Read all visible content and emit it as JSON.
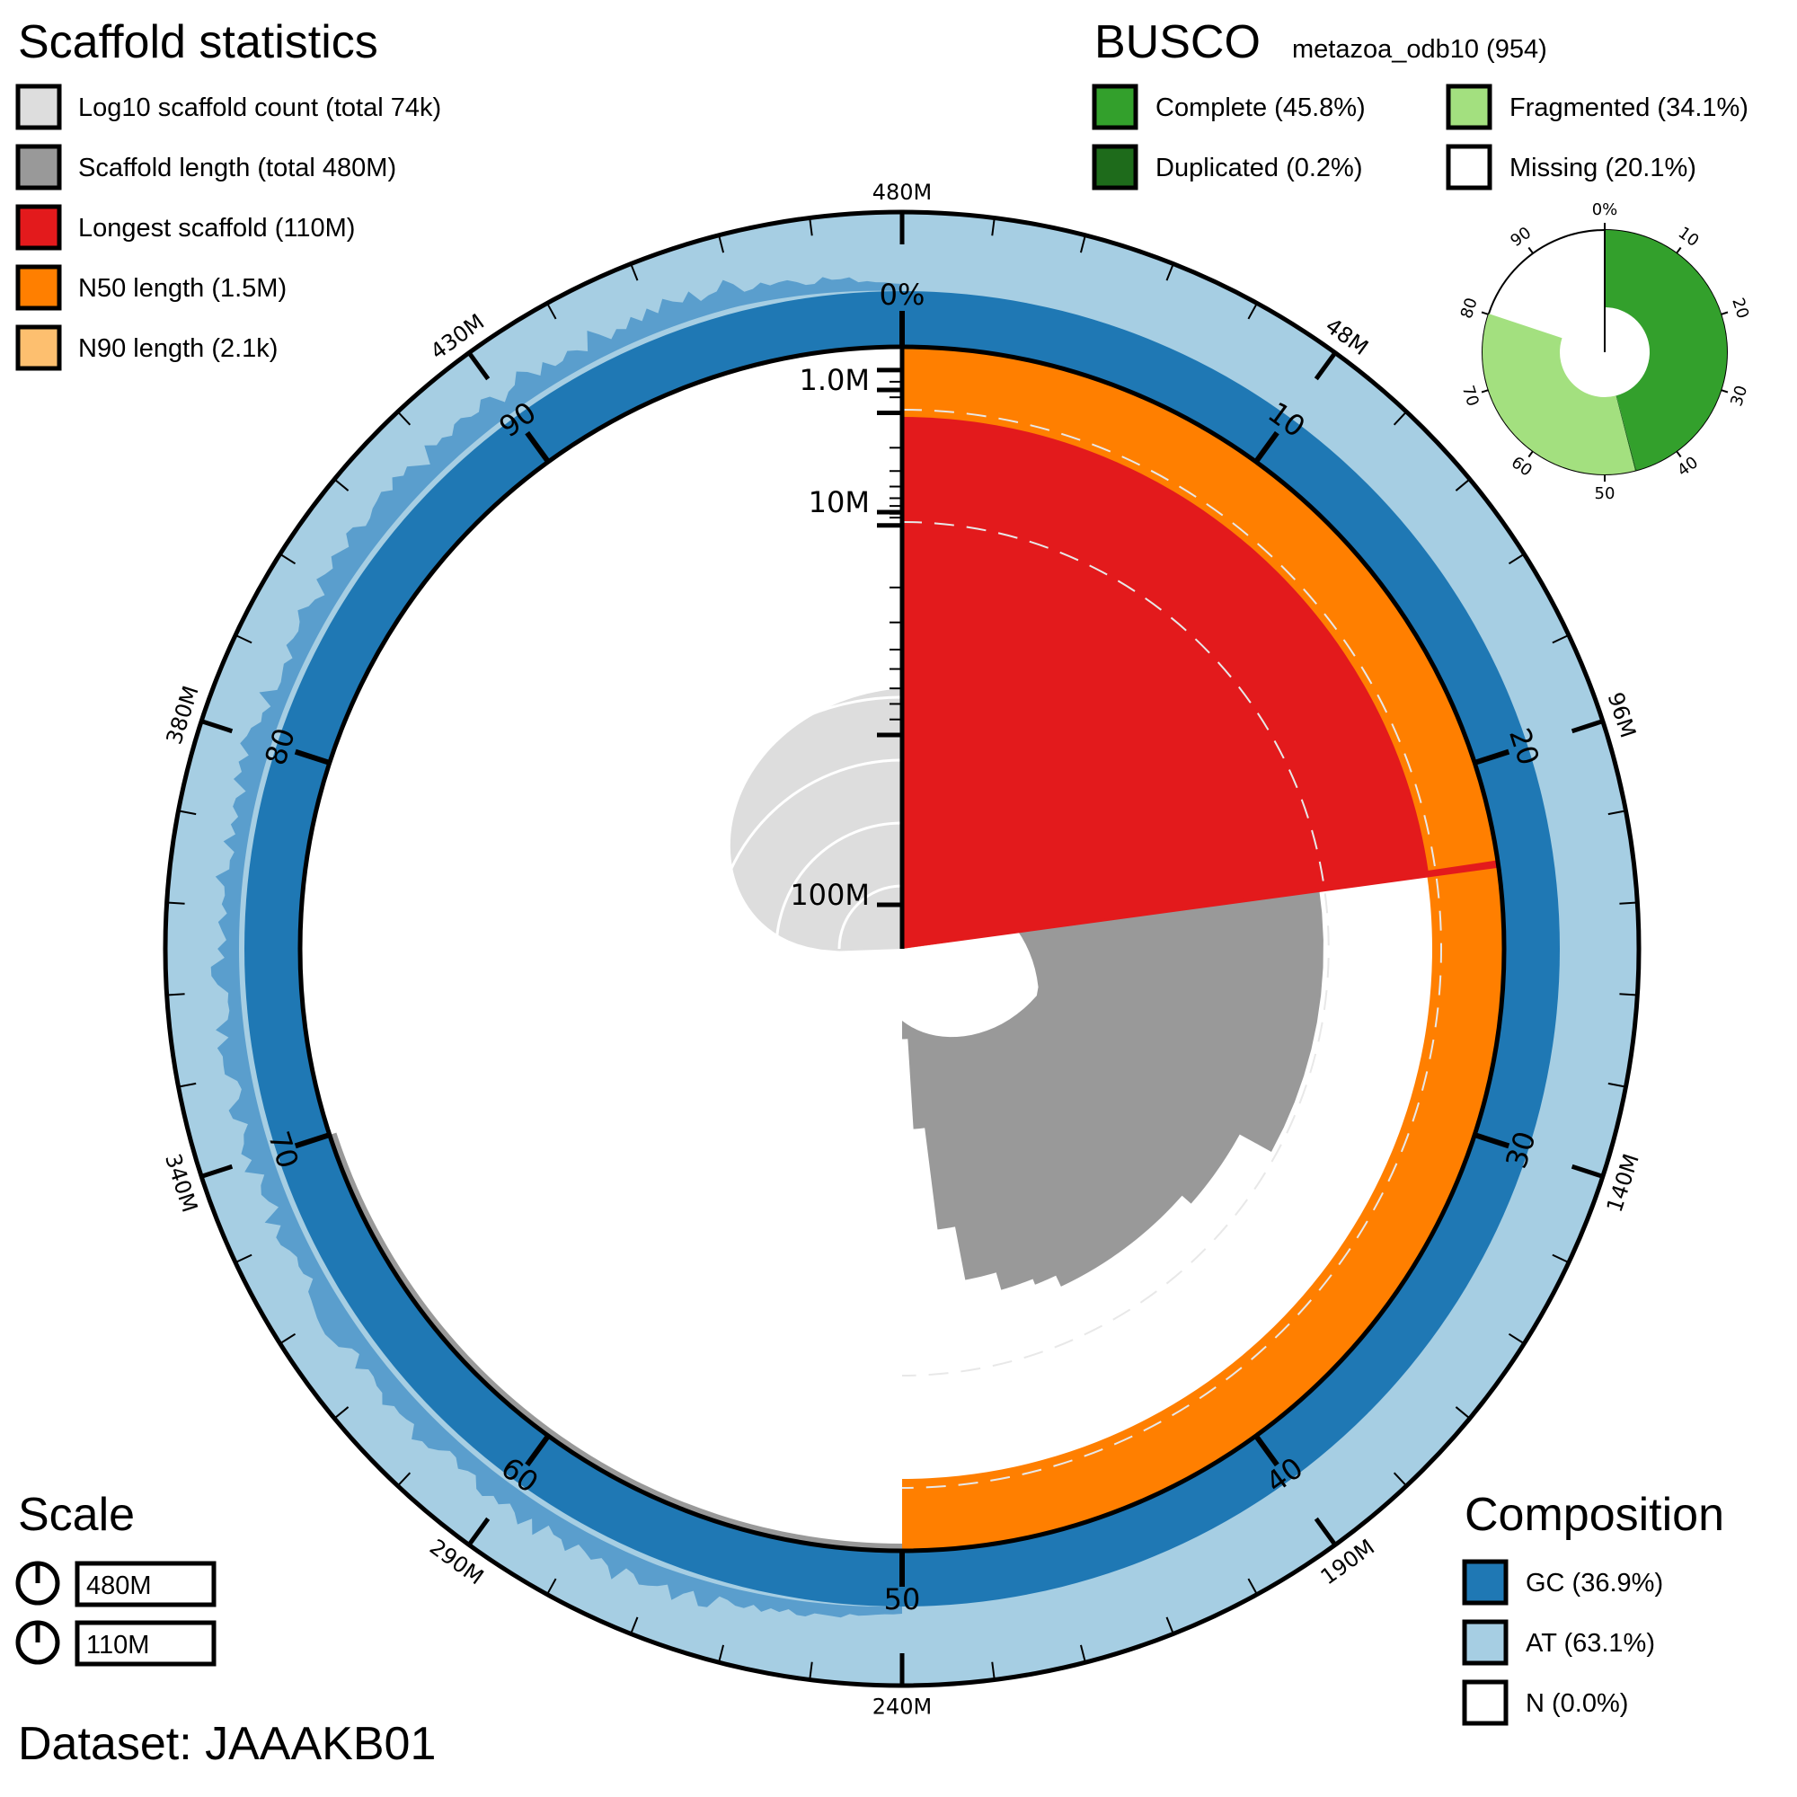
{
  "scaffold_stats": {
    "title": "Scaffold statistics",
    "legend": [
      {
        "label": "Log10 scaffold count (total 74k)",
        "color": "#dddddd"
      },
      {
        "label": "Scaffold length (total 480M)",
        "color": "#999999"
      },
      {
        "label": "Longest scaffold (110M)",
        "color": "#e31a1c"
      },
      {
        "label": "N50 length (1.5M)",
        "color": "#ff7f00"
      },
      {
        "label": "N90 length (2.1k)",
        "color": "#fdbf6f"
      }
    ]
  },
  "busco": {
    "title": "BUSCO",
    "lineage": "metazoa_odb10 (954)",
    "legend": [
      {
        "label": "Complete (45.8%)",
        "color": "#33a02c"
      },
      {
        "label": "Fragmented (34.1%)",
        "color": "#a3e07f"
      },
      {
        "label": "Duplicated (0.2%)",
        "color": "#1e6b1b"
      },
      {
        "label": "Missing (20.1%)",
        "color": "#ffffff"
      }
    ],
    "ticks": [
      "0%",
      "10",
      "20",
      "30",
      "40",
      "50",
      "60",
      "70",
      "80",
      "90"
    ]
  },
  "scale": {
    "title": "Scale",
    "items": [
      "480M",
      "110M"
    ]
  },
  "composition": {
    "title": "Composition",
    "legend": [
      {
        "label": "GC (36.9%)",
        "color": "#1f78b4"
      },
      {
        "label": "AT (63.1%)",
        "color": "#a6cee3"
      },
      {
        "label": "N (0.0%)",
        "color": "#ffffff"
      }
    ]
  },
  "dataset": "Dataset: JAAAKB01",
  "chart_data": {
    "type": "snail",
    "total_length_M": 480,
    "scaffold_count_k": 74,
    "longest_scaffold_M": 110,
    "n50_M": 1.5,
    "n90_k": 2.1,
    "outer_scale_labels": [
      "480M",
      "48M",
      "96M",
      "140M",
      "190M",
      "240M",
      "290M",
      "340M",
      "380M",
      "430M"
    ],
    "percent_labels": [
      "0%",
      "10",
      "20",
      "30",
      "40",
      "50",
      "60",
      "70",
      "80",
      "90"
    ],
    "radial_labels": [
      "1.0M",
      "10M",
      "100M"
    ],
    "busco_percent": {
      "complete": 45.8,
      "duplicated": 0.2,
      "fragmented": 34.1,
      "missing": 20.1
    },
    "composition_percent": {
      "gc": 36.9,
      "at": 63.1,
      "n": 0.0
    }
  }
}
